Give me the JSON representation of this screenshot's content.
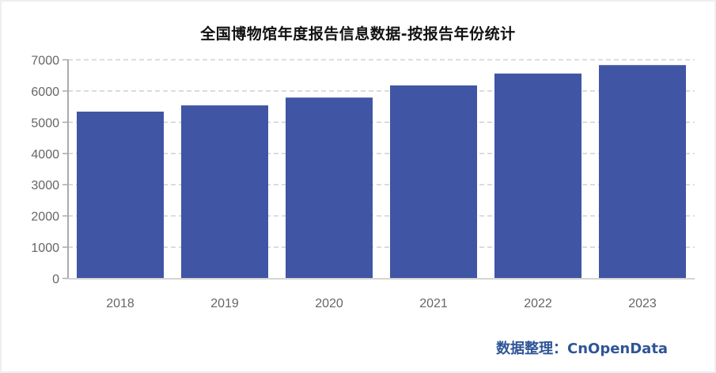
{
  "title": "全国博物馆年度报告信息数据-按报告年份统计",
  "watermark": "数据整理：CnOpenData",
  "colors": {
    "bar": "#4055A4",
    "grid": "#d0d0d0",
    "axis": "#aaaaaa",
    "label": "#666666",
    "watermark": "#2F5597"
  },
  "chart_data": {
    "type": "bar",
    "title": "全国博物馆年度报告信息数据-按报告年份统计",
    "xlabel": "",
    "ylabel": "",
    "categories": [
      "2018",
      "2019",
      "2020",
      "2021",
      "2022",
      "2023"
    ],
    "values": [
      5340,
      5540,
      5790,
      6180,
      6560,
      6830
    ],
    "ylim": [
      0,
      7000
    ],
    "yticks": [
      0,
      1000,
      2000,
      3000,
      4000,
      5000,
      6000,
      7000
    ],
    "grid": {
      "y": true,
      "style": "dashed"
    },
    "legend": null
  }
}
